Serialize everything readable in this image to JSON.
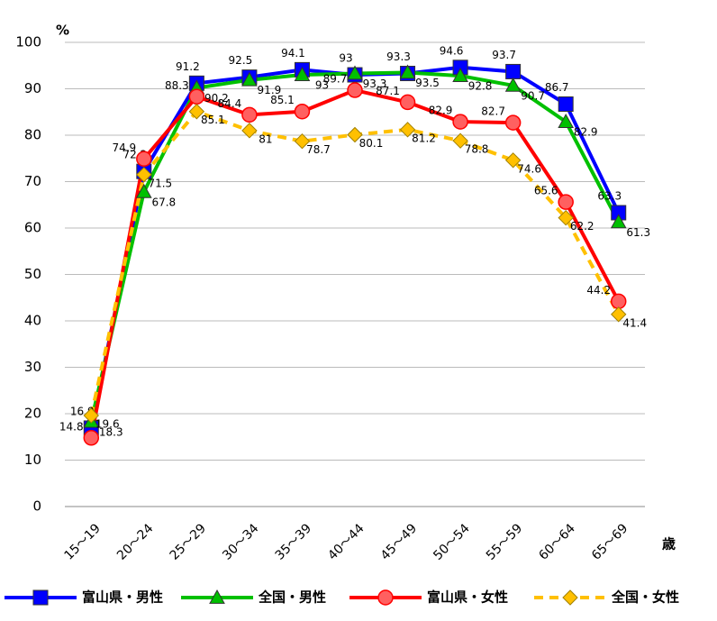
{
  "chart_data": {
    "type": "line",
    "y_label": "%",
    "x_label": "歳",
    "categories": [
      "15〜19",
      "20〜24",
      "25〜29",
      "30〜34",
      "35〜39",
      "40〜44",
      "45〜49",
      "50〜54",
      "55〜59",
      "60〜64",
      "65〜69"
    ],
    "series": [
      {
        "name": "富山県・男性",
        "color": "#0000ff",
        "marker": "square",
        "dash": false,
        "values": [
          16.9,
          72.2,
          91.2,
          92.5,
          94.1,
          93.0,
          93.3,
          94.6,
          93.7,
          86.7,
          63.3
        ]
      },
      {
        "name": "全国・男性",
        "color": "#00c000",
        "marker": "triangle",
        "dash": false,
        "values": [
          18.3,
          67.8,
          90.2,
          91.9,
          93.0,
          93.3,
          93.5,
          92.8,
          90.7,
          82.9,
          61.3
        ]
      },
      {
        "name": "富山県・女性",
        "color": "#ff0000",
        "marker": "circle",
        "dash": false,
        "values": [
          14.8,
          74.9,
          88.3,
          84.4,
          85.1,
          89.7,
          87.1,
          82.9,
          82.7,
          65.6,
          44.2
        ]
      },
      {
        "name": "全国・女性",
        "color": "#ffc000",
        "marker": "diamond",
        "dash": true,
        "values": [
          19.6,
          71.5,
          85.1,
          81.0,
          78.7,
          80.1,
          81.2,
          78.8,
          74.6,
          62.2,
          41.4
        ]
      }
    ],
    "ylim": [
      0,
      100
    ],
    "yticks": [
      0,
      10,
      20,
      30,
      40,
      50,
      60,
      70,
      80,
      90,
      100
    ],
    "grid": true
  }
}
